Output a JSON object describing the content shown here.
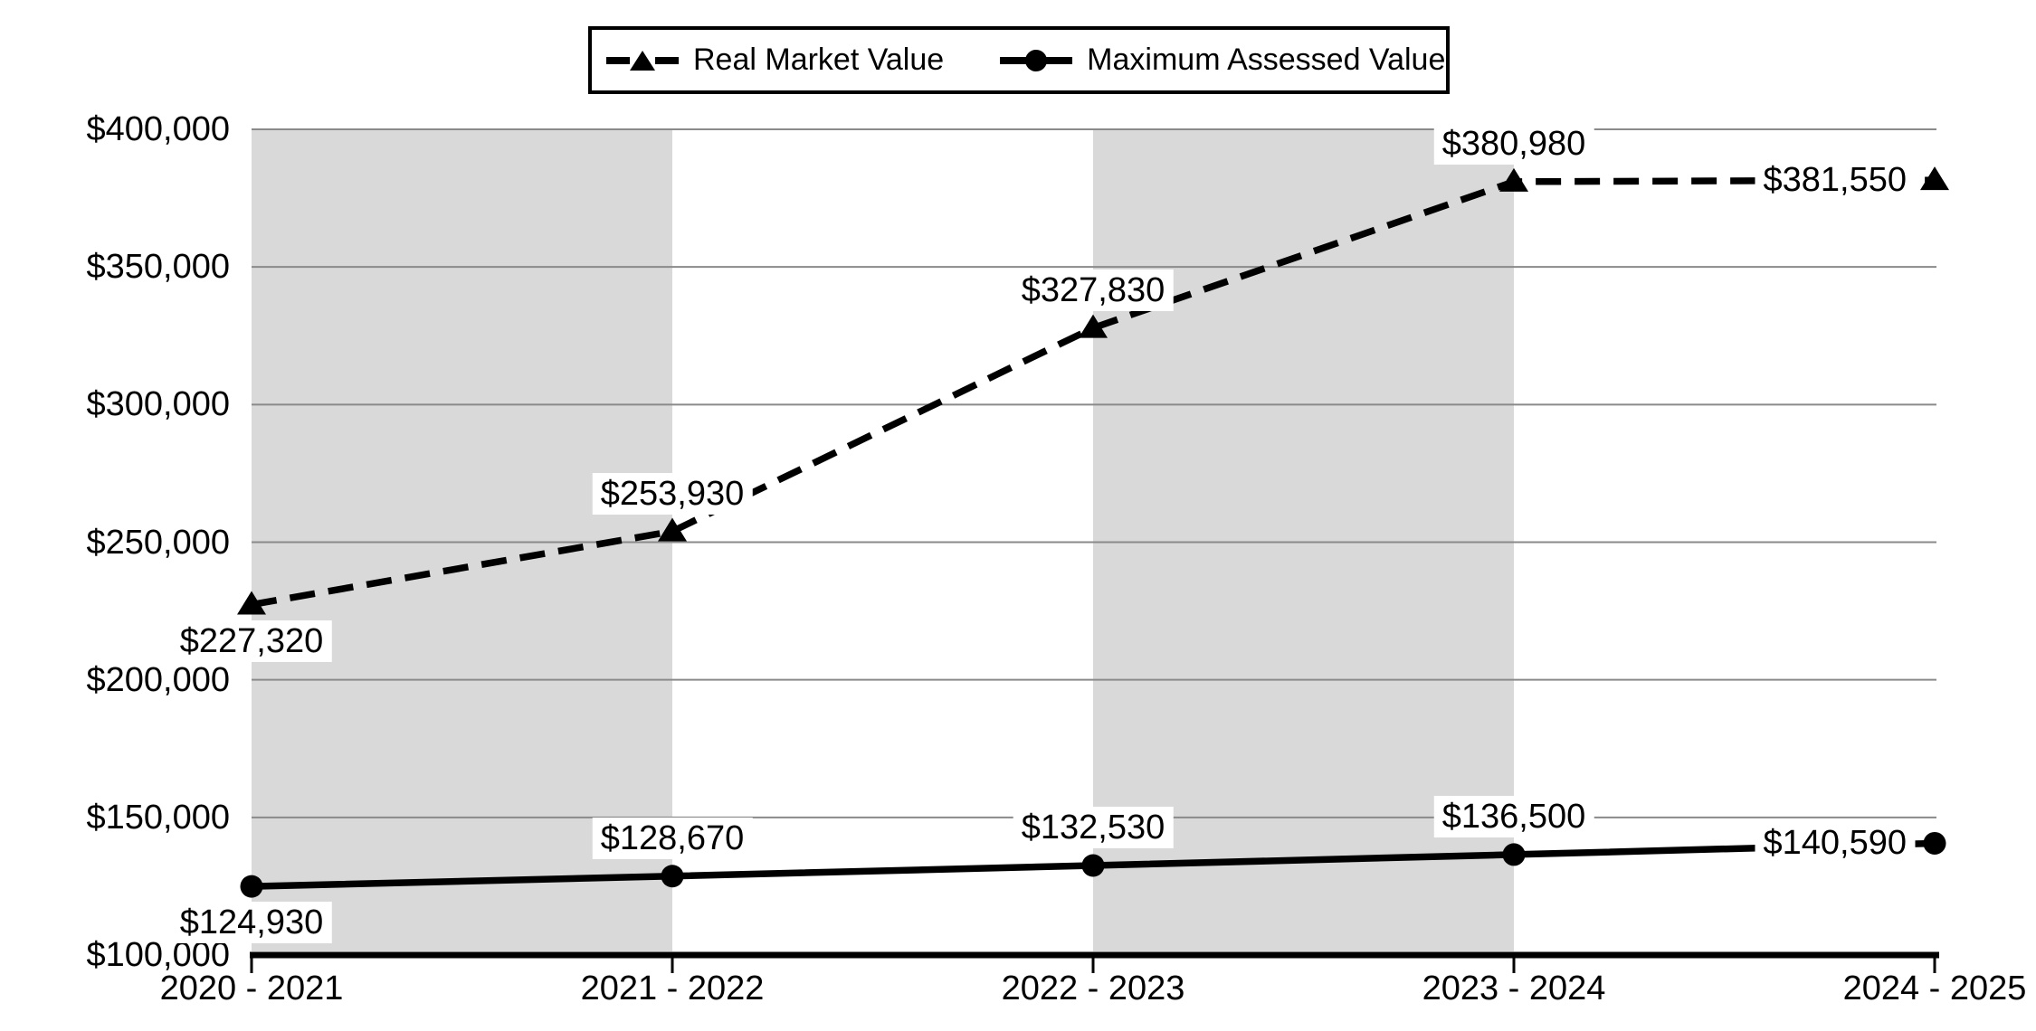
{
  "chart_data": {
    "type": "line",
    "title": "",
    "categories": [
      "2020 - 2021",
      "2021 - 2022",
      "2022 - 2023",
      "2023 - 2024",
      "2024 - 2025"
    ],
    "series": [
      {
        "name": "Real Market Value",
        "values": [
          227320,
          253930,
          327830,
          380980,
          381550
        ],
        "labels": [
          "$227,320",
          "$253,930",
          "$327,830",
          "$380,980",
          "$381,550"
        ],
        "label_placement": [
          "below",
          "above",
          "above",
          "above",
          "left"
        ],
        "line_style": "dashed",
        "marker": "triangle"
      },
      {
        "name": "Maximum Assessed Value",
        "values": [
          124930,
          128670,
          132530,
          136500,
          140590
        ],
        "labels": [
          "$124,930",
          "$128,670",
          "$132,530",
          "$136,500",
          "$140,590"
        ],
        "label_placement": [
          "below",
          "above",
          "above",
          "above",
          "left"
        ],
        "line_style": "solid",
        "marker": "circle"
      }
    ],
    "y_axis": {
      "min": 100000,
      "max": 400000,
      "tick_step": 50000,
      "tick_labels": [
        "$100,000",
        "$150,000",
        "$200,000",
        "$250,000",
        "$300,000",
        "$350,000",
        "$400,000"
      ]
    },
    "x_axis": {
      "tick_labels": [
        "2020 - 2021",
        "2021 - 2022",
        "2022 - 2023",
        "2023 - 2024",
        "2024 - 2025"
      ]
    },
    "legend_position": "top",
    "grid": "horizontal",
    "shaded_band_intervals": [
      [
        0,
        1
      ],
      [
        2,
        3
      ]
    ]
  },
  "colors": {
    "series": "#000000",
    "band": "#d9d9d9",
    "gridline": "#8a8a8a",
    "axis": "#000000",
    "label_bg": "#ffffff",
    "text": "#000000",
    "background": "#ffffff",
    "legend_border": "#000000"
  },
  "legend": {
    "items": [
      {
        "label": "Real Market Value",
        "icon": "dashed-line-triangle"
      },
      {
        "label": "Maximum Assessed Value",
        "icon": "solid-line-circle"
      }
    ]
  }
}
